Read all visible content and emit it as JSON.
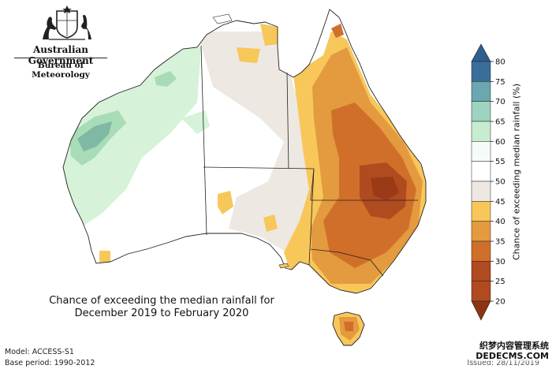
{
  "header": {
    "government": "Australian Government",
    "bureau": "Bureau of Meteorology"
  },
  "caption": {
    "line1": "Chance of exceeding the median rainfall for",
    "line2": "December 2019 to February 2020"
  },
  "footer": {
    "model": "Model: ACCESS-S1",
    "base_period": "Base period: 1990-2012",
    "issued": "Issued: 28/11/2019"
  },
  "watermark": {
    "line1": "织梦内容管理系统",
    "line2": "DEDECMS.COM"
  },
  "colorbar": {
    "title": "Chance of exceeding median rainfall (%)",
    "ticks": [
      "80",
      "75",
      "70",
      "65",
      "60",
      "55",
      "50",
      "45",
      "40",
      "35",
      "30",
      "25",
      "20"
    ],
    "colors": [
      "#3a6e9a",
      "#6aa7b0",
      "#9dd3c0",
      "#c7ecd0",
      "#f7fbf7",
      "#ffffff",
      "#ede8e2",
      "#f8c75a",
      "#e49a3e",
      "#d06f2a",
      "#b04a1f"
    ]
  },
  "legend_colors": {
    "green_dark": "#7fb8a4",
    "green_mid": "#a8dcb6",
    "green_light": "#d6f2d8",
    "neutral_grey": "#ede8e2",
    "yellow": "#f8c75a",
    "orange": "#e49a3e",
    "brown_orange": "#d06f2a",
    "dark_brown": "#b04a1f"
  }
}
